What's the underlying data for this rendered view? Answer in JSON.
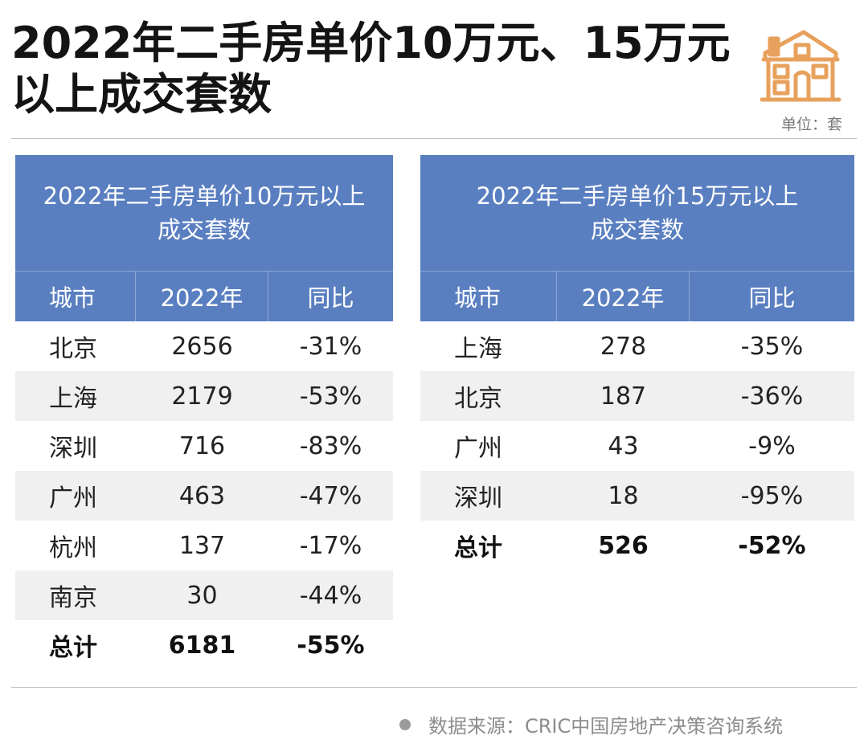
{
  "header": {
    "title_line1": "2022年二手房单价10万元、15万元",
    "title_line2": "以上成交套数",
    "unit": "单位：套"
  },
  "table_left": {
    "title_line1": "2022年二手房单价10万元以上",
    "title_line2": "成交套数",
    "columns": [
      "城市",
      "2022年",
      "同比"
    ],
    "rows": [
      {
        "city": "北京",
        "value": "2656",
        "yoy": "-31%"
      },
      {
        "city": "上海",
        "value": "2179",
        "yoy": "-53%"
      },
      {
        "city": "深圳",
        "value": "716",
        "yoy": "-83%"
      },
      {
        "city": "广州",
        "value": "463",
        "yoy": "-47%"
      },
      {
        "city": "杭州",
        "value": "137",
        "yoy": "-17%"
      },
      {
        "city": "南京",
        "value": "30",
        "yoy": "-44%"
      }
    ],
    "total": {
      "city": "总计",
      "value": "6181",
      "yoy": "-55%"
    }
  },
  "table_right": {
    "title_line1": "2022年二手房单价15万元以上",
    "title_line2": "成交套数",
    "columns": [
      "城市",
      "2022年",
      "同比"
    ],
    "rows": [
      {
        "city": "上海",
        "value": "278",
        "yoy": "-35%"
      },
      {
        "city": "北京",
        "value": "187",
        "yoy": "-36%"
      },
      {
        "city": "广州",
        "value": "43",
        "yoy": "-9%"
      },
      {
        "city": "深圳",
        "value": "18",
        "yoy": "-95%"
      }
    ],
    "total": {
      "city": "总计",
      "value": "526",
      "yoy": "-52%"
    }
  },
  "footer": {
    "source": "数据来源：CRIC中国房地产决策咨询系统"
  },
  "icons": {
    "logo": "house-icon"
  },
  "colors": {
    "header_blue": "#5a7fc1",
    "accent_orange": "#e8a15c"
  }
}
